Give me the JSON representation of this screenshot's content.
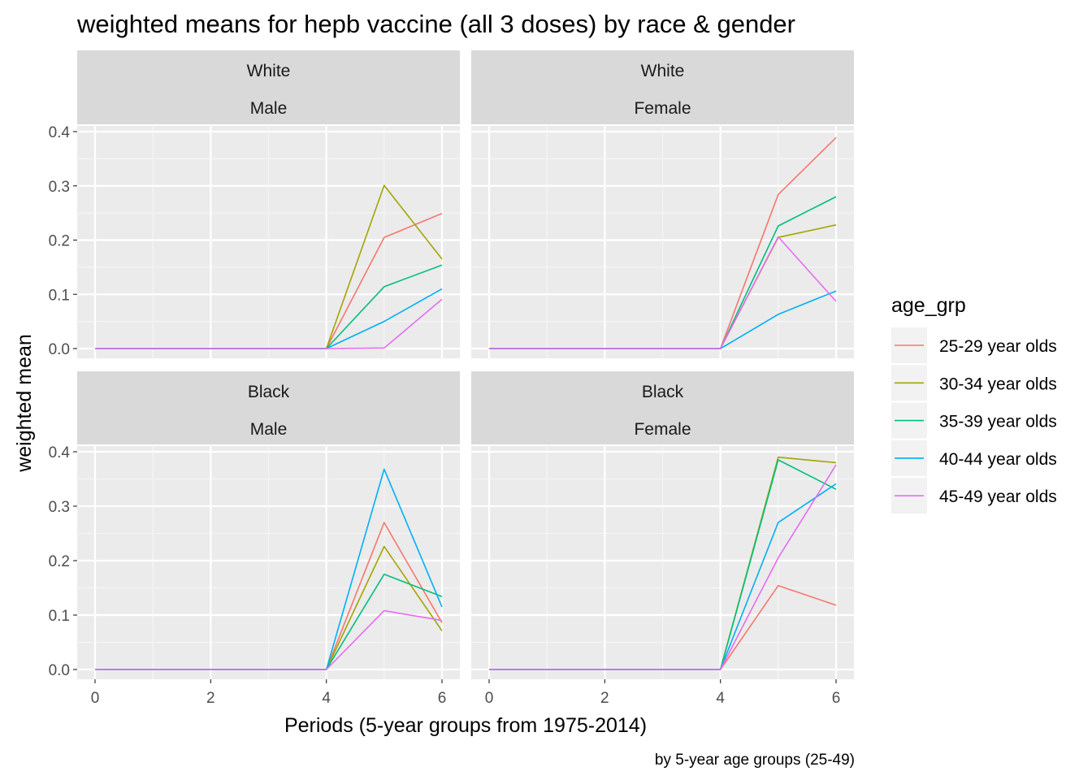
{
  "chart_data": {
    "type": "line",
    "title": "weighted means for hepb vaccine (all 3 doses)  by race & gender",
    "xlabel": "Periods (5-year groups from 1975-2014)",
    "ylabel": "weighted mean",
    "caption": "by 5-year age groups (25-49)",
    "xlim": [
      0,
      6
    ],
    "ylim": [
      0,
      0.4
    ],
    "x_ticks": [
      "0",
      "2",
      "4",
      "6"
    ],
    "y_ticks": [
      "0.0",
      "0.1",
      "0.2",
      "0.3",
      "0.4"
    ],
    "grid": true,
    "legend": {
      "title": "age_grp",
      "position": "right",
      "labels": [
        "25-29 year olds",
        "30-34 year olds",
        "35-39 year olds",
        "40-44 year olds",
        "45-49 year olds"
      ],
      "colors": [
        "#F8766D",
        "#A3A500",
        "#00BF7D",
        "#00B0F6",
        "#E76BF3"
      ]
    },
    "x": [
      0,
      1,
      2,
      3,
      4,
      5,
      6
    ],
    "panels": [
      {
        "race": "White",
        "gender": "Male",
        "series": [
          {
            "name": "25-29 year olds",
            "values": [
              0,
              0,
              0,
              0,
              0,
              0.205,
              0.249
            ]
          },
          {
            "name": "30-34 year olds",
            "values": [
              0,
              0,
              0,
              0,
              0,
              0.301,
              0.165
            ]
          },
          {
            "name": "35-39 year olds",
            "values": [
              0,
              0,
              0,
              0,
              0,
              0.114,
              0.154
            ]
          },
          {
            "name": "40-44 year olds",
            "values": [
              0,
              0,
              0,
              0,
              0,
              0.05,
              0.11
            ]
          },
          {
            "name": "45-49 year olds",
            "values": [
              0,
              0,
              0,
              0,
              0,
              0.001,
              0.091
            ]
          }
        ]
      },
      {
        "race": "White",
        "gender": "Female",
        "series": [
          {
            "name": "25-29 year olds",
            "values": [
              0,
              0,
              0,
              0,
              0,
              0.284,
              0.389
            ]
          },
          {
            "name": "30-34 year olds",
            "values": [
              0,
              0,
              0,
              0,
              0,
              0.205,
              0.228
            ]
          },
          {
            "name": "35-39 year olds",
            "values": [
              0,
              0,
              0,
              0,
              0,
              0.226,
              0.28
            ]
          },
          {
            "name": "40-44 year olds",
            "values": [
              0,
              0,
              0,
              0,
              0,
              0.063,
              0.106
            ]
          },
          {
            "name": "45-49 year olds",
            "values": [
              0,
              0,
              0,
              0,
              0,
              0.206,
              0.087
            ]
          }
        ]
      },
      {
        "race": "Black",
        "gender": "Male",
        "series": [
          {
            "name": "25-29 year olds",
            "values": [
              0,
              0,
              0,
              0,
              0,
              0.27,
              0.086
            ]
          },
          {
            "name": "30-34 year olds",
            "values": [
              0,
              0,
              0,
              0,
              0,
              0.226,
              0.071
            ]
          },
          {
            "name": "35-39 year olds",
            "values": [
              0,
              0,
              0,
              0,
              0,
              0.175,
              0.134
            ]
          },
          {
            "name": "40-44 year olds",
            "values": [
              0,
              0,
              0,
              0,
              0,
              0.368,
              0.115
            ]
          },
          {
            "name": "45-49 year olds",
            "values": [
              0,
              0,
              0,
              0,
              0,
              0.108,
              0.09
            ]
          }
        ]
      },
      {
        "race": "Black",
        "gender": "Female",
        "series": [
          {
            "name": "25-29 year olds",
            "values": [
              0,
              0,
              0,
              0,
              0,
              0.154,
              0.118
            ]
          },
          {
            "name": "30-34 year olds",
            "values": [
              0,
              0,
              0,
              0,
              0,
              0.39,
              0.38
            ]
          },
          {
            "name": "35-39 year olds",
            "values": [
              0,
              0,
              0,
              0,
              0,
              0.385,
              0.331
            ]
          },
          {
            "name": "40-44 year olds",
            "values": [
              0,
              0,
              0,
              0,
              0,
              0.27,
              0.341
            ]
          },
          {
            "name": "45-49 year olds",
            "values": [
              0,
              0,
              0,
              0,
              0,
              0.205,
              0.376
            ]
          }
        ]
      }
    ]
  }
}
